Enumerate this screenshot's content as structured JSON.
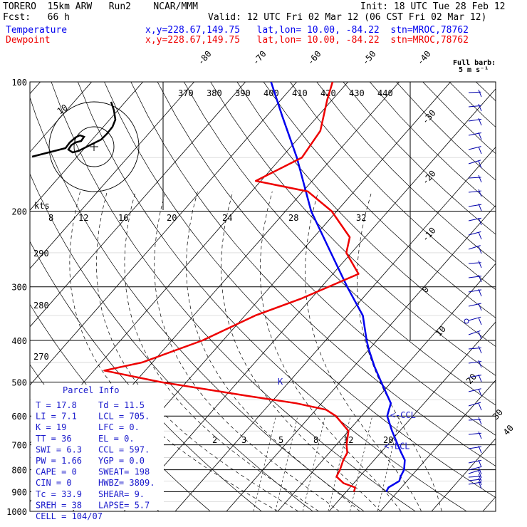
{
  "header": {
    "line1_left": "TORERO  15km ARW   Run2    NCAR/MMM",
    "line1_right": "Init: 18 UTC Tue 28 Feb 12",
    "line2_left": "Fcst:   66 h",
    "line2_right": "Valid: 12 UTC Fri 02 Mar 12 (06 CST Fri 02 Mar 12)",
    "temp_label": "Temperature",
    "dew_label": "Dewpoint",
    "temp_info": "x,y=228.67,149.75   lat,lon= 10.00, -84.22  stn=MROC,78762",
    "dew_info": "x,y=228.67,149.75   lat,lon= 10.00, -84.22  stn=MROC,78762",
    "barb_title": "Full barb:",
    "barb_sub": "5 m s⁻¹"
  },
  "colors": {
    "temperature": "#0000ee",
    "dewpoint": "#ee0000",
    "parcel_text": "#1a1acc"
  },
  "chart_data": {
    "type": "line",
    "y_scale": "log-pressure",
    "ylim": [
      1000,
      100
    ],
    "pressure_ticks": [
      "100",
      "200",
      "300",
      "400",
      "500",
      "600",
      "700",
      "800",
      "900",
      "1000"
    ],
    "isotherm_labels": [
      "-80",
      "-70",
      "-60",
      "-50",
      "-40",
      "-30",
      "-20",
      "-10",
      "0",
      "10",
      "20",
      "30",
      "40"
    ],
    "theta_labels": [
      "370",
      "380",
      "390",
      "400",
      "410",
      "420",
      "430",
      "440"
    ],
    "theta_side_labels": [
      "290",
      "280",
      "270"
    ],
    "mixing_labels": [
      "2",
      "3",
      "5",
      "8",
      "12",
      "20"
    ],
    "hodo_label": "kts",
    "hodo_ticks": [
      "8",
      "12",
      "16",
      "20",
      "24",
      "28",
      "32"
    ],
    "hodo_ring_label": "10",
    "markers": {
      "lcl": "<-LCL",
      "ccl": "<-CCL",
      "k": "K"
    },
    "series": [
      {
        "name": "Temperature",
        "points": [
          [
            900,
            17.8
          ],
          [
            880,
            17.5
          ],
          [
            850,
            18.5
          ],
          [
            830,
            18
          ],
          [
            800,
            17.5
          ],
          [
            760,
            16
          ],
          [
            730,
            14
          ],
          [
            700,
            12
          ],
          [
            650,
            8.5
          ],
          [
            600,
            5
          ],
          [
            560,
            3.5
          ],
          [
            500,
            -2
          ],
          [
            460,
            -6
          ],
          [
            420,
            -10
          ],
          [
            400,
            -12
          ],
          [
            350,
            -17
          ],
          [
            300,
            -25
          ],
          [
            250,
            -34
          ],
          [
            200,
            -45
          ],
          [
            150,
            -57
          ],
          [
            120,
            -67
          ],
          [
            100,
            -75
          ]
        ]
      },
      {
        "name": "Dewpoint",
        "points": [
          [
            900,
            11.5
          ],
          [
            880,
            11
          ],
          [
            860,
            8
          ],
          [
            830,
            5.5
          ],
          [
            800,
            5
          ],
          [
            760,
            4
          ],
          [
            730,
            3.5
          ],
          [
            700,
            2
          ],
          [
            650,
            0
          ],
          [
            600,
            -5
          ],
          [
            580,
            -8
          ],
          [
            560,
            -15
          ],
          [
            540,
            -25
          ],
          [
            500,
            -45
          ],
          [
            470,
            -58
          ],
          [
            450,
            -52
          ],
          [
            400,
            -44
          ],
          [
            350,
            -38
          ],
          [
            320,
            -32
          ],
          [
            280,
            -25
          ],
          [
            250,
            -31
          ],
          [
            230,
            -33
          ],
          [
            200,
            -41
          ],
          [
            180,
            -49
          ],
          [
            170,
            -61
          ],
          [
            150,
            -56
          ],
          [
            130,
            -57
          ],
          [
            110,
            -61
          ],
          [
            100,
            -63
          ]
        ]
      }
    ]
  },
  "parcel": {
    "title": "Parcel Info",
    "rows": [
      [
        "T   =  17.8",
        "Td =  11.5"
      ],
      [
        "LI  =   7.1",
        "LCL =  705."
      ],
      [
        "K   =    19",
        "LFC =    0."
      ],
      [
        "TT  =    36",
        "EL  =    0."
      ],
      [
        "SWI =   6.3",
        "CCL =  597."
      ],
      [
        "PW  =  1.66",
        "YGP =  0.0"
      ],
      [
        "CAPE =    0",
        "SWEAT=  198"
      ],
      [
        "CIN  =    0",
        "HWBZ= 3809."
      ],
      [
        "Tc   = 33.9",
        "SHEAR=   9."
      ],
      [
        "SREH =   38",
        "LAPSE=  5.7"
      ],
      [
        "CELL = 104/07",
        ""
      ]
    ]
  }
}
